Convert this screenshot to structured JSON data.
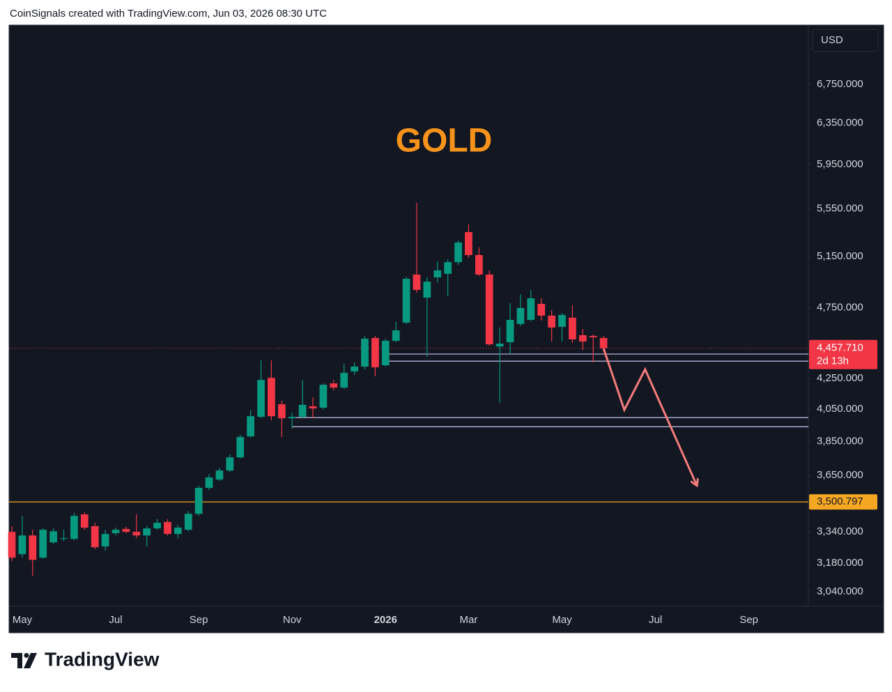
{
  "chart_data": {
    "type": "candlestick",
    "watermark": "CoinSignals created with TradingView.com, Jun 03, 2026 08:30 UTC",
    "title": "GOLD",
    "title_color": "#f7931a",
    "currency": "USD",
    "brand": "TradingView",
    "log_scale": true,
    "up_color": "#089981",
    "down_color": "#f23645",
    "categories": [
      null,
      "May",
      null,
      null,
      null,
      null,
      null,
      null,
      null,
      null,
      "Jul",
      null,
      null,
      null,
      null,
      null,
      null,
      null,
      "Sep",
      null,
      null,
      null,
      null,
      null,
      null,
      null,
      null,
      "Nov",
      null,
      null,
      null,
      null,
      null,
      null,
      null,
      null,
      "2026",
      null,
      null,
      null,
      null,
      null,
      null,
      null,
      "Mar",
      null,
      null,
      null,
      null,
      null,
      null,
      null,
      null,
      "May",
      null,
      null,
      null,
      null,
      null,
      null,
      null,
      null,
      "Jul",
      null,
      null,
      null,
      null,
      null,
      null,
      null,
      null,
      "Sep",
      null,
      null,
      null,
      null,
      null
    ],
    "open": [
      3340,
      3225,
      3321,
      3207,
      3285,
      3303,
      3303,
      3433,
      3370,
      3264,
      3333,
      3355,
      3340,
      3321,
      3358,
      3392,
      3329,
      3351,
      3436,
      3579,
      3626,
      3678,
      3755,
      3881,
      4002,
      4255,
      4082,
      3993,
      4002,
      4069,
      4060,
      4218,
      4190,
      4298,
      4331,
      4530,
      4340,
      4510,
      4641,
      5005,
      4827,
      4983,
      5011,
      5104,
      5351,
      5161,
      5005,
      4470,
      4500,
      4631,
      4661,
      4780,
      4692,
      4610,
      4677,
      4550,
      4545,
      4530,
      null,
      null,
      null,
      null,
      null,
      null,
      null,
      null,
      null,
      null,
      null,
      null,
      null,
      null,
      null,
      null,
      null,
      null,
      null
    ],
    "high": [
      3370,
      3425,
      3351,
      3358,
      3358,
      3351,
      3440,
      3444,
      3388,
      3351,
      3362,
      3366,
      3433,
      3370,
      3407,
      3407,
      3377,
      3451,
      3591,
      3658,
      3694,
      3772,
      3890,
      4046,
      4373,
      4373,
      4104,
      4028,
      4241,
      4127,
      4218,
      4241,
      4350,
      4359,
      4545,
      4545,
      4525,
      4646,
      4988,
      5603,
      4983,
      5110,
      5127,
      5281,
      5416,
      5224,
      5038,
      4605,
      4785,
      4853,
      4886,
      4822,
      4733,
      4712,
      4769,
      4595,
      4555,
      4545,
      null,
      null,
      null,
      null,
      null,
      null,
      null,
      null,
      null,
      null,
      null,
      null,
      null,
      null,
      null,
      null,
      null,
      null,
      null
    ],
    "low": [
      3190,
      3207,
      3117,
      3200,
      3278,
      3292,
      3296,
      3351,
      3250,
      3243,
      3321,
      3333,
      3307,
      3264,
      3351,
      3321,
      3307,
      3343,
      3425,
      3567,
      3618,
      3670,
      3747,
      3873,
      3993,
      3980,
      3877,
      3928,
      3993,
      3993,
      4046,
      4172,
      4181,
      4274,
      4312,
      4265,
      4331,
      4500,
      4631,
      4864,
      4397,
      4945,
      4837,
      5082,
      5138,
      4994,
      4475,
      4091,
      4417,
      4615,
      4651,
      4656,
      4505,
      4505,
      4495,
      4446,
      4359,
      4432,
      null,
      null,
      null,
      null,
      null,
      null,
      null,
      null,
      null,
      null,
      null,
      null,
      null,
      null,
      null,
      null,
      null,
      null,
      null
    ],
    "close": [
      3207,
      3321,
      3196,
      3351,
      3343,
      3307,
      3425,
      3362,
      3260,
      3329,
      3351,
      3340,
      3321,
      3358,
      3388,
      3329,
      3362,
      3436,
      3579,
      3638,
      3678,
      3755,
      3877,
      4006,
      4241,
      4006,
      3993,
      4002,
      4078,
      4055,
      4209,
      4190,
      4288,
      4331,
      4525,
      4326,
      4510,
      4585,
      4972,
      4886,
      4950,
      5038,
      5104,
      5264,
      5161,
      5005,
      4485,
      4490,
      4661,
      4749,
      4822,
      4692,
      4605,
      4697,
      4520,
      4505,
      4535,
      4457.71,
      null,
      null,
      null,
      null,
      null,
      null,
      null,
      null,
      null,
      null,
      null,
      null,
      null,
      null,
      null,
      null,
      null,
      null,
      null
    ],
    "ylim": [
      2971,
      7409
    ],
    "yticks": [
      {
        "value": 6750,
        "label": "6,750.000"
      },
      {
        "value": 6350,
        "label": "6,350.000"
      },
      {
        "value": 5950,
        "label": "5,950.000"
      },
      {
        "value": 5550,
        "label": "5,550.000"
      },
      {
        "value": 5150,
        "label": "5,150.000"
      },
      {
        "value": 4750,
        "label": "4,750.000"
      },
      {
        "value": 4250,
        "label": "4,250.000"
      },
      {
        "value": 4050,
        "label": "4,050.000"
      },
      {
        "value": 3850,
        "label": "3,850.000"
      },
      {
        "value": 3650,
        "label": "3,650.000"
      },
      {
        "value": 3340,
        "label": "3,340.000"
      },
      {
        "value": 3180,
        "label": "3,180.000"
      },
      {
        "value": 3040,
        "label": "3,040.000"
      }
    ],
    "last_price": {
      "value": 4457.71,
      "label": "4,457.710",
      "countdown": "2d 13h",
      "color": "#f23645"
    },
    "level": {
      "value": 3500.797,
      "label": "3,500.797",
      "color": "#f5a623"
    },
    "hlines": [
      {
        "value": 4417,
        "start": 36,
        "color": "#c9c0ee"
      },
      {
        "value": 4368,
        "start": 36,
        "color": "#c9c0ee"
      },
      {
        "value": 3997,
        "start": 27,
        "color": "#c9c0ee"
      },
      {
        "value": 3940,
        "start": 27,
        "color": "#c9c0ee"
      }
    ],
    "projection": {
      "color": "#f47c7c",
      "x": [
        57,
        59,
        61,
        66
      ],
      "y": [
        4456,
        4046,
        4312,
        3591
      ]
    }
  }
}
